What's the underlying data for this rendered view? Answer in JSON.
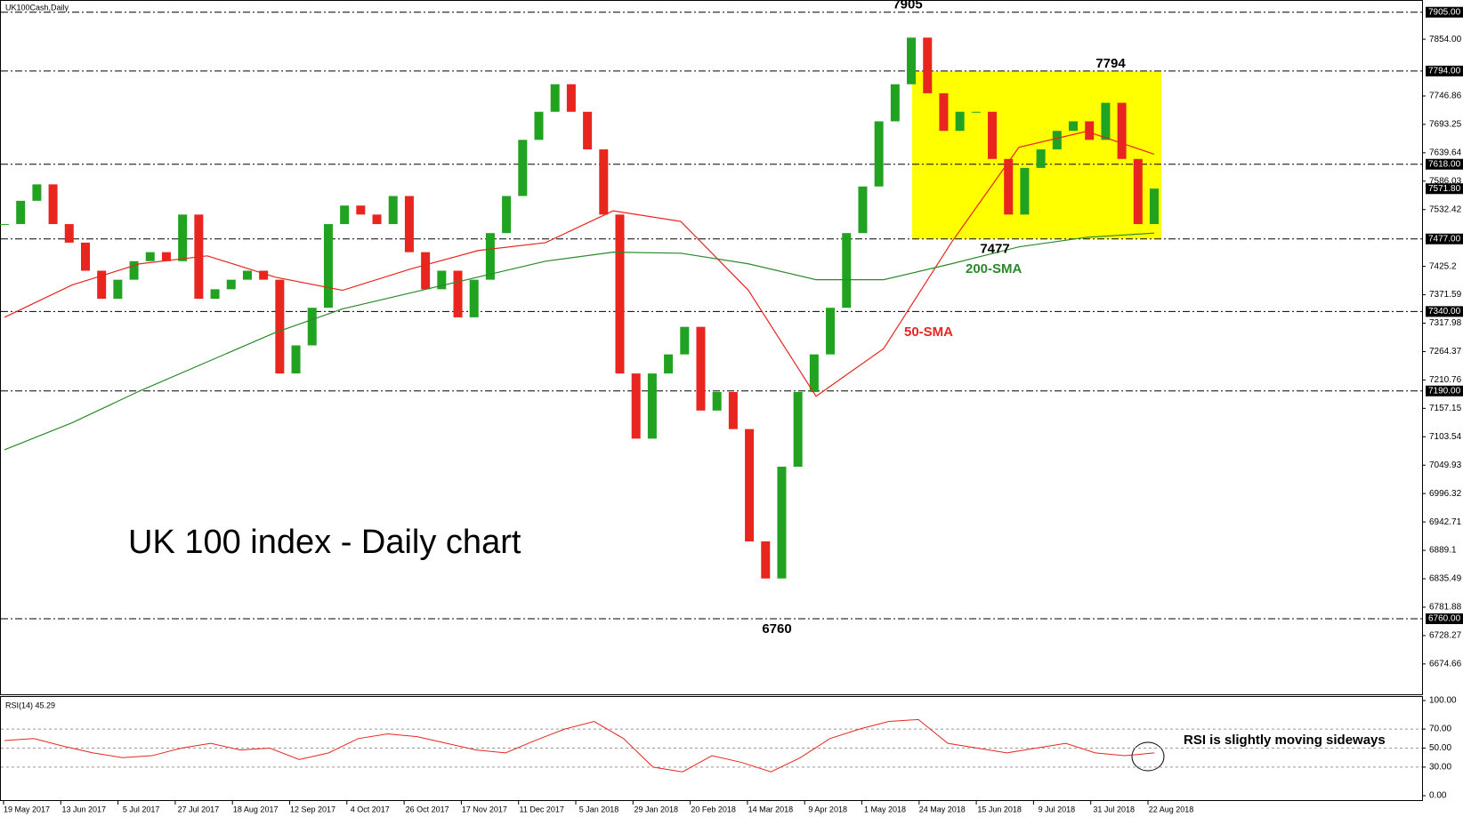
{
  "chart_data": {
    "type": "candlestick",
    "symbol": "UK100Cash,Daily",
    "title": "UK 100 index - Daily chart",
    "ylim": [
      6619,
      7923
    ],
    "yticks": [
      {
        "value": 7854,
        "label": "7854.00"
      },
      7746.86,
      7693.25,
      7639.64,
      7586.03,
      7532.42,
      7425.2,
      7371.59,
      7317.98,
      7264.37,
      7210.76,
      7157.15,
      7103.54,
      7049.93,
      6996.32,
      6942.71,
      6889.1,
      6835.49,
      6781.88,
      6728.27,
      6674.66
    ],
    "levels": [
      {
        "value": 7905,
        "label": "7905.00"
      },
      {
        "value": 7794,
        "label": "7794.00"
      },
      {
        "value": 7618,
        "label": "7618.00"
      },
      {
        "value": 7477,
        "label": "7477.00"
      },
      {
        "value": 7340,
        "label": "7340.00"
      },
      {
        "value": 7190,
        "label": "7190.00"
      },
      {
        "value": 6760,
        "label": "6760.00"
      }
    ],
    "current_price": {
      "value": 7571.8,
      "label": "7571.80"
    },
    "peak_labels": [
      7905,
      7794,
      7477,
      6760
    ],
    "xticks": [
      "19 May 2017",
      "13 Jun 2017",
      "5 Jul 2017",
      "27 Jul 2017",
      "18 Aug 2017",
      "12 Sep 2017",
      "4 Oct 2017",
      "26 Oct 2017",
      "17 Nov 2017",
      "11 Dec 2017",
      "5 Jan 2018",
      "29 Jan 2018",
      "20 Feb 2018",
      "14 Mar 2018",
      "9 Apr 2018",
      "1 May 2018",
      "24 May 2018",
      "15 Jun 2018",
      "9 Jul 2018",
      "31 Jul 2018",
      "22 Aug 2018"
    ],
    "series": [
      {
        "name": "UK100Cash",
        "up_color": "#21a321",
        "down_color": "#e8251f",
        "values": [
          7505,
          7549,
          7580,
          7505,
          7470,
          7417,
          7364,
          7400,
          7435,
          7452,
          7435,
          7523,
          7364,
          7382,
          7400,
          7417,
          7400,
          7223,
          7276,
          7347,
          7505,
          7540,
          7523,
          7505,
          7558,
          7452,
          7382,
          7417,
          7329,
          7400,
          7488,
          7558,
          7664,
          7717,
          7769,
          7717,
          7646,
          7523,
          7223,
          7100,
          7223,
          7259,
          7311,
          7153,
          7188,
          7118,
          6906,
          6836,
          7047,
          7188,
          7259,
          7347,
          7488,
          7576,
          7699,
          7769,
          7857,
          7752,
          7681,
          7717,
          7717,
          7628,
          7523,
          7611,
          7646,
          7681,
          7699,
          7664,
          7734,
          7628,
          7505,
          7572
        ]
      },
      {
        "name": "50-SMA",
        "color": "#e8251f",
        "values": [
          7329,
          7390,
          7430,
          7445,
          7405,
          7380,
          7420,
          7455,
          7470,
          7530,
          7510,
          7380,
          7180,
          7270,
          7470,
          7650,
          7680,
          7637
        ]
      },
      {
        "name": "200-SMA",
        "color": "#2a8a2a",
        "values": [
          7079,
          7130,
          7190,
          7245,
          7300,
          7345,
          7375,
          7405,
          7435,
          7452,
          7450,
          7430,
          7400,
          7400,
          7430,
          7462,
          7480,
          7488
        ]
      }
    ],
    "rsi": {
      "label": "RSI(14) 45.29",
      "annotation": "RSI is slightly moving sideways",
      "color": "#e8251f",
      "ylim": [
        0,
        100
      ],
      "yticks": [
        {
          "value": 100,
          "label": "100.00"
        },
        {
          "value": 70,
          "label": "70.00"
        },
        {
          "value": 50,
          "label": "50.00"
        },
        {
          "value": 30,
          "label": "30.00"
        },
        {
          "value": 0,
          "label": "0.00"
        }
      ],
      "levels": [
        70,
        50,
        30
      ],
      "values": [
        58,
        60,
        52,
        45,
        40,
        42,
        50,
        55,
        48,
        50,
        38,
        45,
        60,
        65,
        62,
        55,
        48,
        45,
        58,
        70,
        78,
        60,
        30,
        25,
        42,
        35,
        25,
        40,
        60,
        70,
        78,
        80,
        55,
        50,
        45,
        50,
        55,
        45,
        42,
        45
      ]
    }
  }
}
